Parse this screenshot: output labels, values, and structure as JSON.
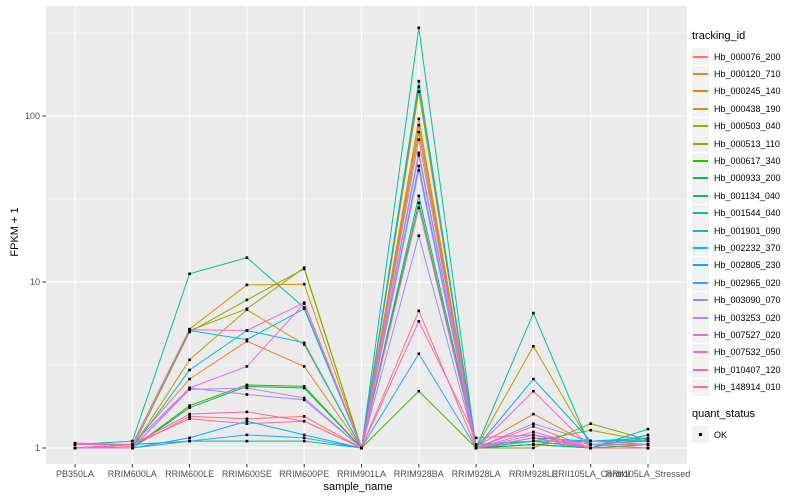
{
  "chart_data": {
    "type": "line",
    "title": "",
    "xlabel": "sample_name",
    "ylabel": "FPKM + 1",
    "y_scale": "log10",
    "ylim": [
      0.76,
      460
    ],
    "y_ticks": [
      1,
      10,
      100
    ],
    "y_tick_labels": [
      "1",
      "10",
      "100"
    ],
    "y_minor_ticks": [
      3.162,
      31.62,
      316.2
    ],
    "grid": true,
    "panel_background": "#EBEBEB",
    "grid_color": "#FFFFFF",
    "tick_color": "#333333",
    "tick_label_color": "#4D4D4D",
    "legend_position": "right",
    "point_marker": {
      "shape": "square",
      "color": "#000000"
    },
    "categories": [
      "PB350LA",
      "RRIM600LA",
      "RRIM600LE",
      "RRIM600SE",
      "RRIM600PE",
      "RRIM901LA",
      "RRIM928BA",
      "RRIM928LA",
      "RRIM928LE",
      "RRII105LA_Control",
      "RRII105LA_Stressed"
    ],
    "series": [
      {
        "name": "Hb_000076_200",
        "color": "#F8766D",
        "values": [
          1.0,
          1.02,
          1.55,
          1.5,
          1.55,
          1.0,
          6.7,
          1.0,
          1.35,
          1.0,
          1.0
        ]
      },
      {
        "name": "Hb_000120_710",
        "color": "#EA8331",
        "values": [
          1.0,
          1.05,
          2.6,
          4.4,
          3.1,
          1.0,
          96,
          1.02,
          1.6,
          1.05,
          1.0
        ]
      },
      {
        "name": "Hb_000245_140",
        "color": "#D89000",
        "values": [
          1.0,
          1.05,
          5.2,
          9.6,
          9.7,
          1.0,
          88,
          1.0,
          1.05,
          1.1,
          1.05
        ]
      },
      {
        "name": "Hb_000438_190",
        "color": "#C09B00",
        "values": [
          1.0,
          1.0,
          3.4,
          6.8,
          4.2,
          1.0,
          80,
          1.0,
          4.1,
          1.05,
          1.1
        ]
      },
      {
        "name": "Hb_000503_040",
        "color": "#A3A500",
        "values": [
          1.0,
          1.05,
          5.1,
          6.9,
          12.2,
          1.0,
          140,
          1.0,
          1.1,
          1.28,
          1.1
        ]
      },
      {
        "name": "Hb_000513_110",
        "color": "#7CAE00",
        "values": [
          1.0,
          1.0,
          5.0,
          7.8,
          12.0,
          1.0,
          150,
          1.0,
          1.0,
          1.4,
          1.12
        ]
      },
      {
        "name": "Hb_000617_340",
        "color": "#39B600",
        "values": [
          1.0,
          1.0,
          1.8,
          2.4,
          2.35,
          1.0,
          2.2,
          1.0,
          1.05,
          1.0,
          1.05
        ]
      },
      {
        "name": "Hb_000933_200",
        "color": "#00BB4E",
        "values": [
          1.0,
          1.0,
          1.75,
          2.35,
          2.3,
          1.0,
          30,
          1.0,
          1.05,
          1.0,
          1.0
        ]
      },
      {
        "name": "Hb_001134_040",
        "color": "#00BF7D",
        "values": [
          1.05,
          1.05,
          1.1,
          1.1,
          1.1,
          1.0,
          33,
          1.05,
          1.1,
          1.0,
          1.2
        ]
      },
      {
        "name": "Hb_001544_040",
        "color": "#00C1A3",
        "values": [
          1.05,
          1.1,
          11.2,
          14.0,
          7.0,
          1.0,
          340,
          1.0,
          6.5,
          1.0,
          1.3
        ]
      },
      {
        "name": "Hb_001901_090",
        "color": "#00BFC4",
        "values": [
          1.0,
          1.05,
          5.1,
          4.5,
          6.9,
          1.0,
          60,
          1.0,
          1.1,
          1.1,
          1.1
        ]
      },
      {
        "name": "Hb_002232_370",
        "color": "#00BAE0",
        "values": [
          1.0,
          1.0,
          2.95,
          5.1,
          4.3,
          1.0,
          50,
          1.0,
          1.15,
          1.1,
          1.12
        ]
      },
      {
        "name": "Hb_002805_230",
        "color": "#00B0F6",
        "values": [
          1.0,
          1.0,
          1.15,
          1.45,
          1.2,
          1.0,
          162,
          1.0,
          2.6,
          1.1,
          1.15
        ]
      },
      {
        "name": "Hb_002965_020",
        "color": "#35A2FF",
        "values": [
          1.0,
          1.0,
          1.1,
          1.2,
          1.15,
          1.0,
          3.7,
          1.0,
          1.1,
          1.0,
          1.0
        ]
      },
      {
        "name": "Hb_003090_070",
        "color": "#9590FF",
        "values": [
          1.0,
          1.05,
          2.3,
          2.1,
          1.95,
          1.0,
          19,
          1.0,
          1.4,
          1.1,
          1.05
        ]
      },
      {
        "name": "Hb_003253_020",
        "color": "#C77CFF",
        "values": [
          1.0,
          1.0,
          2.25,
          2.3,
          2.0,
          1.0,
          47,
          1.0,
          1.2,
          1.05,
          1.05
        ]
      },
      {
        "name": "Hb_007527_020",
        "color": "#E76BF3",
        "values": [
          1.0,
          1.0,
          2.3,
          3.1,
          7.4,
          1.0,
          58,
          1.0,
          1.25,
          1.0,
          1.0
        ]
      },
      {
        "name": "Hb_007532_050",
        "color": "#FA62DB",
        "values": [
          1.0,
          1.05,
          5.15,
          5.1,
          7.5,
          1.0,
          72,
          1.0,
          2.2,
          1.0,
          1.0
        ]
      },
      {
        "name": "Hb_010407_120",
        "color": "#FF62BC",
        "values": [
          1.05,
          1.05,
          1.6,
          1.65,
          1.45,
          1.0,
          5.8,
          1.15,
          1.2,
          1.0,
          1.0
        ]
      },
      {
        "name": "Hb_148914_010",
        "color": "#FF6A98",
        "values": [
          1.07,
          1.05,
          1.5,
          1.4,
          1.45,
          1.0,
          28,
          1.0,
          1.15,
          1.0,
          1.0
        ]
      }
    ]
  },
  "legend": {
    "tracking_title": "tracking_id",
    "quant_title": "quant_status",
    "quant_items": [
      {
        "label": "OK"
      }
    ]
  }
}
